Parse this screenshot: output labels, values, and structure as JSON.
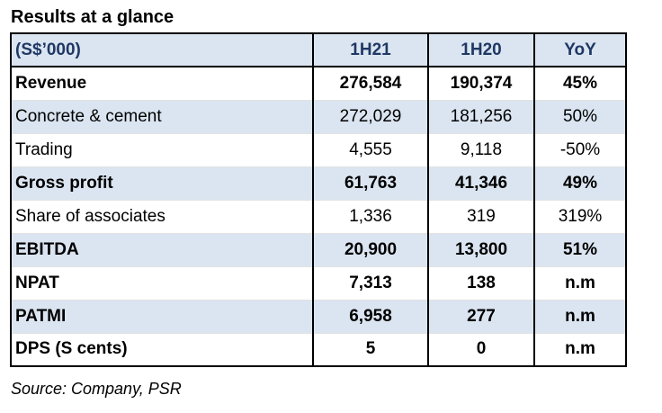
{
  "title": "Results at a glance",
  "table": {
    "headers": [
      "(S$’000)",
      "1H21",
      "1H20",
      "YoY"
    ],
    "rows": [
      {
        "label": "Revenue",
        "h121": "276,584",
        "h120": "190,374",
        "yoy": "45%"
      },
      {
        "label": "Concrete & cement",
        "h121": "272,029",
        "h120": "181,256",
        "yoy": "50%"
      },
      {
        "label": "Trading",
        "h121": "4,555",
        "h120": "9,118",
        "yoy": "-50%"
      },
      {
        "label": "Gross profit",
        "h121": "61,763",
        "h120": "41,346",
        "yoy": "49%"
      },
      {
        "label": "Share of associates",
        "h121": "1,336",
        "h120": "319",
        "yoy": "319%"
      },
      {
        "label": "EBITDA",
        "h121": "20,900",
        "h120": "13,800",
        "yoy": "51%"
      },
      {
        "label": "NPAT",
        "h121": "7,313",
        "h120": "138",
        "yoy": "n.m"
      },
      {
        "label": "PATMI",
        "h121": "6,958",
        "h120": "277",
        "yoy": "n.m"
      },
      {
        "label": "DPS (S cents)",
        "h121": "5",
        "h120": "0",
        "yoy": "n.m"
      }
    ]
  },
  "source": "Source: Company, PSR",
  "colors": {
    "header_bg": "#dbe5f1",
    "header_text": "#1f3864",
    "border": "#000000"
  }
}
